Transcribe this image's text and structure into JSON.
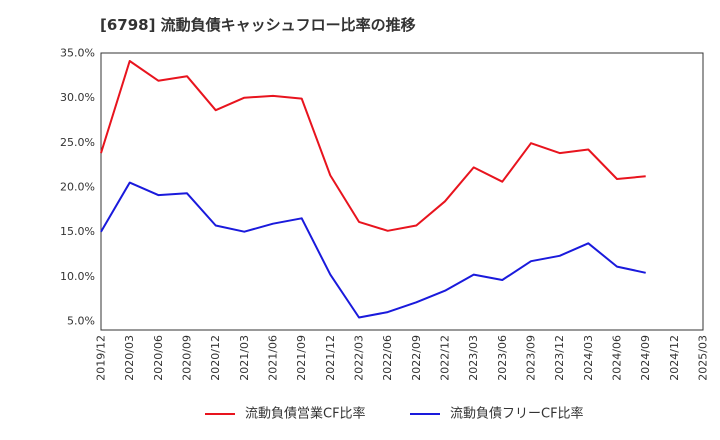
{
  "chart_data": {
    "type": "line",
    "title": "[6798]  流動負債キャッシュフロー比率の推移",
    "xlabel": "",
    "ylabel": "",
    "ylim": [
      4,
      35
    ],
    "xlim": [
      "2019/12",
      "2025/03"
    ],
    "y_ticks": [
      "5.0%",
      "10.0%",
      "15.0%",
      "20.0%",
      "25.0%",
      "30.0%",
      "35.0%"
    ],
    "y_tick_values": [
      5,
      10,
      15,
      20,
      25,
      30,
      35
    ],
    "x_ticks": [
      "2019/12",
      "2020/03",
      "2020/06",
      "2020/09",
      "2020/12",
      "2021/03",
      "2021/06",
      "2021/09",
      "2021/12",
      "2022/03",
      "2022/06",
      "2022/09",
      "2022/12",
      "2023/03",
      "2023/06",
      "2023/09",
      "2023/12",
      "2024/03",
      "2024/06",
      "2024/09",
      "2024/12",
      "2025/03"
    ],
    "grid": true,
    "legend_position": "bottom",
    "x": [
      "2019/12",
      "2020/03",
      "2020/06",
      "2020/09",
      "2020/12",
      "2021/03",
      "2021/06",
      "2021/09",
      "2021/12",
      "2022/03",
      "2022/06",
      "2022/09",
      "2022/12",
      "2023/03",
      "2023/06",
      "2023/09",
      "2023/12",
      "2024/03",
      "2024/06",
      "2024/09"
    ],
    "series": [
      {
        "name": "流動負債営業CF比率",
        "color": "#e8141e",
        "values": [
          23.8,
          34.1,
          31.9,
          32.4,
          28.6,
          30.0,
          30.2,
          29.9,
          21.3,
          16.1,
          15.1,
          15.7,
          18.4,
          22.2,
          20.6,
          24.9,
          23.8,
          24.2,
          20.9,
          21.2
        ]
      },
      {
        "name": "流動負債フリーCF比率",
        "color": "#1a1adc",
        "values": [
          15.0,
          20.5,
          19.1,
          19.3,
          15.7,
          15.0,
          15.9,
          16.5,
          10.2,
          5.4,
          6.0,
          7.1,
          8.4,
          10.2,
          9.6,
          11.7,
          12.3,
          13.7,
          11.1,
          10.4
        ]
      }
    ]
  }
}
